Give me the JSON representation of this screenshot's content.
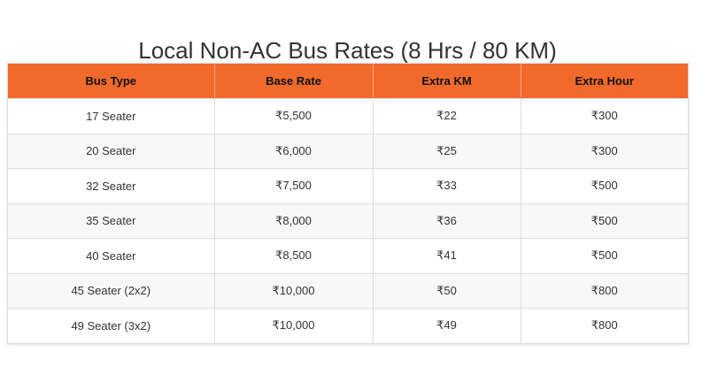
{
  "page": {
    "title": "Local Non-AC Bus Rates (8 Hrs / 80 KM)"
  },
  "table": {
    "headers": [
      "Bus Type",
      "Base Rate",
      "Extra KM",
      "Extra Hour"
    ],
    "rows": [
      [
        "17 Seater",
        "₹5,500",
        "₹22",
        "₹300"
      ],
      [
        "20 Seater",
        "₹6,000",
        "₹25",
        "₹300"
      ],
      [
        "32 Seater",
        "₹7,500",
        "₹33",
        "₹500"
      ],
      [
        "35 Seater",
        "₹8,000",
        "₹36",
        "₹500"
      ],
      [
        "40 Seater",
        "₹8,500",
        "₹41",
        "₹500"
      ],
      [
        "45 Seater (2x2)",
        "₹10,000",
        "₹50",
        "₹800"
      ],
      [
        "49 Seater (3x2)",
        "₹10,000",
        "₹49",
        "₹800"
      ]
    ]
  },
  "colors": {
    "header_bg": "#f26a2b",
    "row_alt_bg": "#f8f8f8",
    "border": "#dddddd"
  }
}
